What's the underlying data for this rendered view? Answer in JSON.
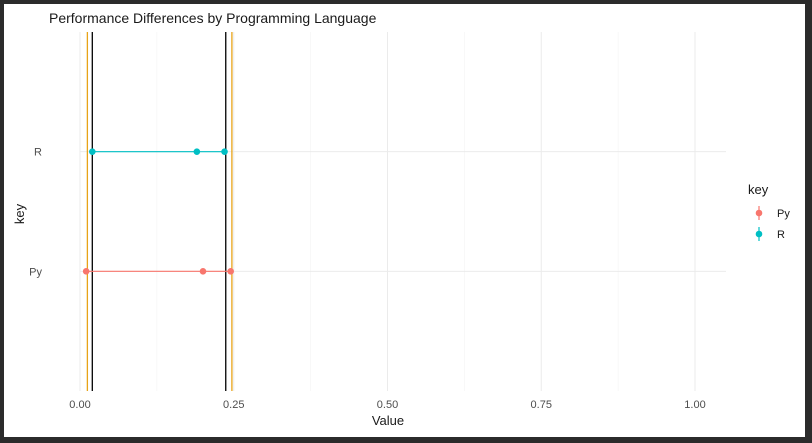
{
  "chart_data": {
    "type": "dumbbell",
    "title": "Performance Differences by Programming Language",
    "xlabel": "Value",
    "ylabel": "key",
    "xlim": [
      0,
      1
    ],
    "xticks": [
      0,
      0.25,
      0.5,
      0.75,
      1
    ],
    "xtick_labels": [
      "0.00",
      "0.25",
      "0.50",
      "0.75",
      "1.00"
    ],
    "categories": [
      "Py",
      "R"
    ],
    "series": [
      {
        "name": "Py",
        "color": "#F8766D",
        "points": [
          0.01,
          0.2,
          0.245
        ]
      },
      {
        "name": "R",
        "color": "#00BFC4",
        "points": [
          0.02,
          0.19,
          0.235
        ]
      }
    ],
    "vlines": [
      {
        "x": 0.012,
        "color": "#E8A317"
      },
      {
        "x": 0.02,
        "color": "#000000"
      },
      {
        "x": 0.237,
        "color": "#000000"
      },
      {
        "x": 0.247,
        "color": "#E8A317"
      }
    ],
    "legend": {
      "title": "key",
      "position": "right",
      "items": [
        "Py",
        "R"
      ]
    },
    "grid": true
  }
}
